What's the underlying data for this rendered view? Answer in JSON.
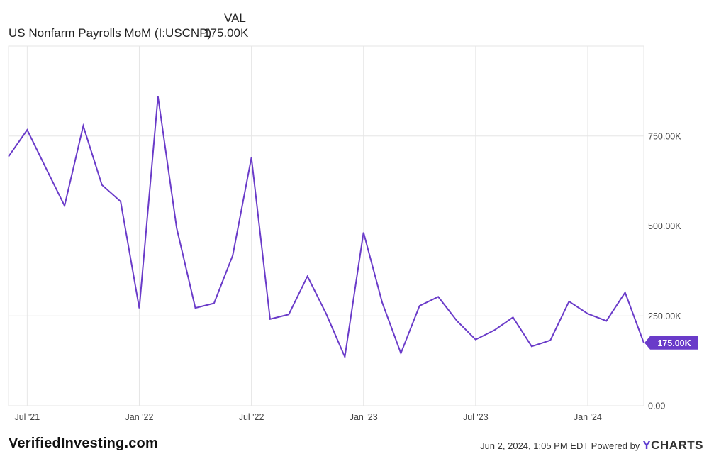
{
  "legend": {
    "value_header": "VAL",
    "series_name": "US Nonfarm Payrolls MoM (I:USCNP)",
    "series_value": "175.00K"
  },
  "footer": {
    "brand": "VerifiedInvesting.com",
    "timestamp": "Jun 2, 2024, 1:05 PM EDT Powered by",
    "logo_y": "Y",
    "logo_rest": "CHARTS"
  },
  "colors": {
    "line": "#6a3bc9",
    "grid": "#e6e6e6",
    "badge": "#6a3bc9"
  },
  "chart_data": {
    "type": "line",
    "series": [
      {
        "name": "US Nonfarm Payrolls MoM (I:USCNP)",
        "x": [
          "2021-06",
          "2021-07",
          "2021-08",
          "2021-09",
          "2021-10",
          "2021-11",
          "2021-12",
          "2022-01",
          "2022-02",
          "2022-03",
          "2022-04",
          "2022-05",
          "2022-06",
          "2022-07",
          "2022-08",
          "2022-09",
          "2022-10",
          "2022-11",
          "2022-12",
          "2023-01",
          "2023-02",
          "2023-03",
          "2023-04",
          "2023-05",
          "2023-06",
          "2023-07",
          "2023-08",
          "2023-09",
          "2023-10",
          "2023-11",
          "2023-12",
          "2024-01",
          "2024-02",
          "2024-03",
          "2024-04"
        ],
        "values": [
          693,
          767,
          661,
          556,
          778,
          614,
          568,
          271,
          860,
          494,
          272,
          285,
          418,
          690,
          241,
          254,
          360,
          256,
          136,
          482,
          287,
          146,
          278,
          303,
          236,
          184,
          210,
          246,
          165,
          182,
          290,
          256,
          236,
          315,
          175
        ]
      }
    ],
    "x_tick_labels": [
      "Jul '21",
      "Jan '22",
      "Jul '22",
      "Jan '23",
      "Jul '23",
      "Jan '24"
    ],
    "y_tick_labels": [
      "0.00",
      "250.00K",
      "500.00K",
      "750.00K"
    ],
    "y_ticks": [
      0,
      250,
      500,
      750
    ],
    "ylim": [
      0,
      1000
    ],
    "xlim": [
      "2021-06",
      "2024-04"
    ],
    "last_value_label": "175.00K",
    "grid": true
  }
}
